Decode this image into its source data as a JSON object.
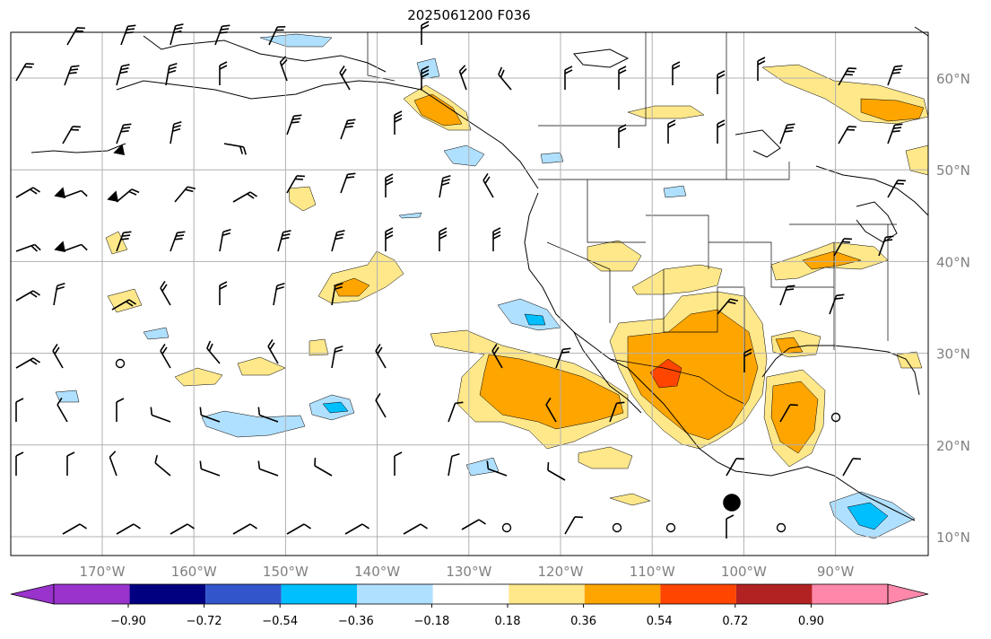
{
  "title": "2025061200 F036",
  "lat_labels": [
    "60°N",
    "50°N",
    "40°N",
    "30°N",
    "20°N",
    "10°N"
  ],
  "lon_labels": [
    "170°W",
    "160°W",
    "150°W",
    "140°W",
    "130°W",
    "120°W",
    "110°W",
    "100°W",
    "90°W"
  ],
  "colorbar": {
    "ticks": [
      "−0.90",
      "−0.72",
      "−0.54",
      "−0.36",
      "−0.18",
      "0.18",
      "0.36",
      "0.54",
      "0.72",
      "0.90"
    ],
    "colors": [
      "#9933cc",
      "#000080",
      "#3355cc",
      "#00bfff",
      "#b0e0ff",
      "#ffffff",
      "#ffe88a",
      "#ffa500",
      "#ff4500",
      "#b22222",
      "#ff88aa",
      "#ff88aa"
    ]
  },
  "chart_data": {
    "type": "heatmap",
    "title": "2025061200 F036",
    "xlim": [
      -180,
      -80
    ],
    "ylim": [
      8,
      65
    ],
    "grid": true,
    "levels": [
      -0.9,
      -0.72,
      -0.54,
      -0.36,
      -0.18,
      0.18,
      0.36,
      0.54,
      0.72,
      0.9
    ],
    "positive_regions": [
      {
        "lon": -128,
        "lat": 58,
        "level": 0.36
      },
      {
        "lon": -86,
        "lat": 58,
        "level": 0.36
      },
      {
        "lon": -113,
        "lat": 55,
        "level": 0.18
      },
      {
        "lon": -138,
        "lat": 37,
        "level": 0.36
      },
      {
        "lon": -118,
        "lat": 26,
        "level": 0.36
      },
      {
        "lon": -106,
        "lat": 28,
        "level": 0.72
      },
      {
        "lon": -94,
        "lat": 24,
        "level": 0.36
      },
      {
        "lon": -93,
        "lat": 40,
        "level": 0.36
      },
      {
        "lon": -109,
        "lat": 38,
        "level": 0.18
      },
      {
        "lon": -117,
        "lat": 41,
        "level": 0.18
      },
      {
        "lon": -159,
        "lat": 27,
        "level": 0.36
      },
      {
        "lon": -150,
        "lat": 28,
        "level": 0.36
      },
      {
        "lon": -110,
        "lat": 18,
        "level": 0.36
      }
    ],
    "negative_regions": [
      {
        "lon": -145,
        "lat": 63,
        "level": -0.18
      },
      {
        "lon": -134,
        "lat": 60,
        "level": -0.18
      },
      {
        "lon": -129,
        "lat": 52,
        "level": -0.18
      },
      {
        "lon": -122,
        "lat": 34,
        "level": -0.36
      },
      {
        "lon": -144,
        "lat": 24,
        "level": -0.36
      },
      {
        "lon": -150,
        "lat": 22,
        "level": -0.18
      },
      {
        "lon": -92,
        "lat": 12,
        "level": -0.54
      },
      {
        "lon": -164,
        "lat": 31,
        "level": -0.18
      },
      {
        "lon": -126,
        "lat": 18,
        "level": -0.18
      },
      {
        "lon": -173,
        "lat": 25,
        "level": -0.18
      }
    ]
  }
}
